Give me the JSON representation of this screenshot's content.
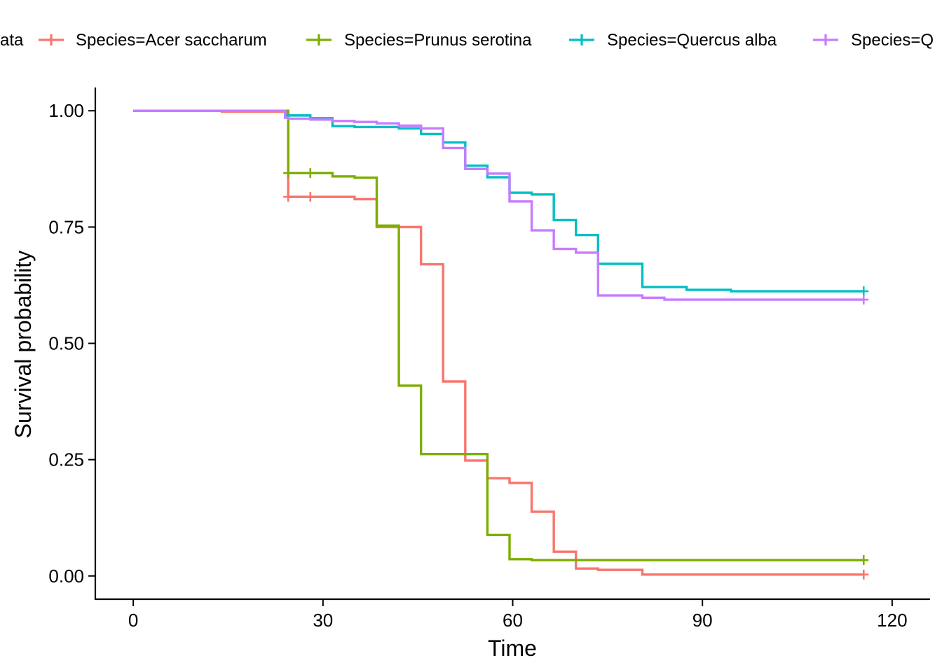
{
  "chart_data": {
    "type": "line",
    "step": true,
    "title": "",
    "xlabel": "Time",
    "ylabel": "Survival probability",
    "xlim": [
      -6,
      126
    ],
    "ylim": [
      -0.05,
      1.05
    ],
    "x_ticks": [
      0,
      30,
      60,
      90,
      120
    ],
    "x_tick_labels": [
      "0",
      "30",
      "60",
      "90",
      "120"
    ],
    "y_ticks": [
      0,
      0.25,
      0.5,
      0.75,
      1
    ],
    "y_tick_labels": [
      "0.00",
      "0.25",
      "0.50",
      "0.75",
      "1.00"
    ],
    "grid": false,
    "legend_position": "top",
    "legend": [
      {
        "label": "ata",
        "color": "#ffffff"
      },
      {
        "label": "Species=Acer saccharum",
        "color": "#F8766D"
      },
      {
        "label": "Species=Prunus serotina",
        "color": "#7CAE00"
      },
      {
        "label": "Species=Quercus alba",
        "color": "#00BFC4"
      },
      {
        "label": "Species=Q",
        "color": "#C77CFF"
      }
    ],
    "series": [
      {
        "name": "Species=Acer saccharum",
        "color": "#F8766D",
        "x": [
          0,
          14,
          24,
          24.5,
          35,
          38.5,
          45.5,
          49,
          52.5,
          56,
          59.5,
          63,
          66.5,
          70,
          73.5,
          80.5,
          115.5
        ],
        "y": [
          1.0,
          0.998,
          0.995,
          0.815,
          0.81,
          0.75,
          0.67,
          0.418,
          0.248,
          0.21,
          0.2,
          0.138,
          0.052,
          0.016,
          0.013,
          0.003,
          0.003
        ],
        "censor_x": [
          24.5,
          28,
          115.5
        ],
        "censor_y": [
          0.815,
          0.815,
          0.003
        ]
      },
      {
        "name": "Species=Prunus serotina",
        "color": "#7CAE00",
        "x": [
          0,
          24,
          24.5,
          28,
          31.5,
          35,
          38.5,
          42,
          45.5,
          56,
          59.5,
          63,
          115.5
        ],
        "y": [
          1.0,
          1.0,
          0.866,
          0.866,
          0.859,
          0.856,
          0.753,
          0.409,
          0.262,
          0.088,
          0.036,
          0.034,
          0.034
        ],
        "censor_x": [
          24.5,
          28,
          115.5
        ],
        "censor_y": [
          0.866,
          0.866,
          0.034
        ]
      },
      {
        "name": "Species=Quercus alba",
        "color": "#00BFC4",
        "x": [
          0,
          24,
          28,
          31.5,
          35,
          38.5,
          42,
          45.5,
          49,
          52.5,
          56,
          59.5,
          63,
          66.5,
          70,
          73.5,
          80.5,
          87.5,
          94.5,
          115.5
        ],
        "y": [
          1.0,
          0.99,
          0.984,
          0.967,
          0.965,
          0.965,
          0.962,
          0.95,
          0.932,
          0.882,
          0.857,
          0.824,
          0.82,
          0.765,
          0.733,
          0.671,
          0.621,
          0.615,
          0.612,
          0.612
        ],
        "censor_x": [
          115.5
        ],
        "censor_y": [
          0.612
        ]
      },
      {
        "name": "Species=Q",
        "color": "#C77CFF",
        "x": [
          0,
          24,
          24.5,
          28,
          31.5,
          35,
          38.5,
          42,
          45.5,
          49,
          52.5,
          56,
          59.5,
          63,
          66.5,
          70,
          73.5,
          80.5,
          84,
          115.5
        ],
        "y": [
          1.0,
          0.985,
          0.983,
          0.981,
          0.978,
          0.976,
          0.973,
          0.968,
          0.962,
          0.92,
          0.875,
          0.865,
          0.805,
          0.743,
          0.703,
          0.695,
          0.603,
          0.598,
          0.594,
          0.594
        ],
        "censor_x": [
          115.5
        ],
        "censor_y": [
          0.594
        ]
      }
    ]
  }
}
